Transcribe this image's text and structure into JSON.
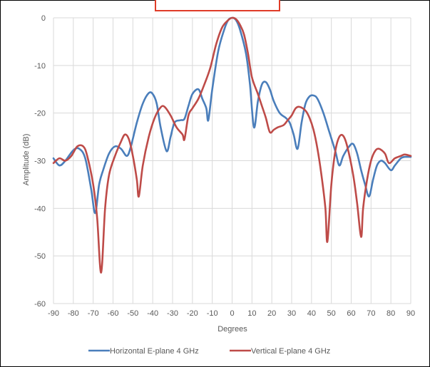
{
  "chart_data": {
    "type": "line",
    "title": "",
    "xlabel": "Degrees",
    "ylabel": "Amplitude (dB)",
    "xlim": [
      -90,
      90
    ],
    "ylim": [
      -60,
      0
    ],
    "x_ticks": [
      "-90",
      "-80",
      "-70",
      "-60",
      "-50",
      "-40",
      "-30",
      "-20",
      "-10",
      "0",
      "10",
      "20",
      "30",
      "40",
      "50",
      "60",
      "70",
      "80",
      "90"
    ],
    "y_ticks": [
      "0",
      "-10",
      "-20",
      "-30",
      "-40",
      "-50",
      "-60"
    ],
    "grid": true,
    "legend_position": "bottom",
    "series": [
      {
        "name": "Horizontal E-plane 4 GHz",
        "color": "#4a7ebb",
        "points": [
          [
            -90,
            -29.5
          ],
          [
            -87,
            -31
          ],
          [
            -84,
            -30
          ],
          [
            -80,
            -27.8
          ],
          [
            -77,
            -27.5
          ],
          [
            -74,
            -29.5
          ],
          [
            -71,
            -36
          ],
          [
            -69,
            -41
          ],
          [
            -67,
            -35
          ],
          [
            -65,
            -32
          ],
          [
            -62,
            -28.5
          ],
          [
            -59,
            -27
          ],
          [
            -56,
            -27.5
          ],
          [
            -53,
            -29
          ],
          [
            -51,
            -27
          ],
          [
            -48,
            -22
          ],
          [
            -45,
            -18
          ],
          [
            -42,
            -15.8
          ],
          [
            -40,
            -16
          ],
          [
            -38,
            -18
          ],
          [
            -36,
            -23
          ],
          [
            -33,
            -28
          ],
          [
            -31,
            -25
          ],
          [
            -29,
            -22
          ],
          [
            -26,
            -21.5
          ],
          [
            -24,
            -21.2
          ],
          [
            -22,
            -18.5
          ],
          [
            -20,
            -16
          ],
          [
            -17,
            -15
          ],
          [
            -15,
            -17
          ],
          [
            -13,
            -19
          ],
          [
            -12,
            -21.5
          ],
          [
            -10,
            -15
          ],
          [
            -7,
            -7
          ],
          [
            -4,
            -2.5
          ],
          [
            -2,
            -0.5
          ],
          [
            0,
            0
          ],
          [
            2,
            -0.5
          ],
          [
            4,
            -2.5
          ],
          [
            7,
            -7.5
          ],
          [
            9,
            -14
          ],
          [
            11,
            -23
          ],
          [
            13,
            -17.5
          ],
          [
            15,
            -14
          ],
          [
            17,
            -13.5
          ],
          [
            19,
            -15
          ],
          [
            21,
            -17.5
          ],
          [
            24,
            -20
          ],
          [
            27,
            -21
          ],
          [
            29,
            -22
          ],
          [
            31,
            -24.5
          ],
          [
            33,
            -27.5
          ],
          [
            35,
            -22
          ],
          [
            37,
            -18
          ],
          [
            39,
            -16.5
          ],
          [
            41,
            -16.3
          ],
          [
            43,
            -17
          ],
          [
            46,
            -20
          ],
          [
            49,
            -24
          ],
          [
            52,
            -28
          ],
          [
            54,
            -31
          ],
          [
            56,
            -29
          ],
          [
            59,
            -27
          ],
          [
            61,
            -26.5
          ],
          [
            63,
            -28.5
          ],
          [
            65,
            -32
          ],
          [
            67,
            -35
          ],
          [
            69,
            -37.5
          ],
          [
            71,
            -34
          ],
          [
            73,
            -31
          ],
          [
            75,
            -30
          ],
          [
            77,
            -30.5
          ],
          [
            80,
            -32
          ],
          [
            82,
            -31
          ],
          [
            85,
            -29.5
          ],
          [
            87,
            -29.2
          ],
          [
            90,
            -29.2
          ]
        ]
      },
      {
        "name": "Vertical E-plane 4 GHz",
        "color": "#be4b48",
        "points": [
          [
            -90,
            -30.5
          ],
          [
            -87,
            -29.5
          ],
          [
            -84,
            -30
          ],
          [
            -81,
            -29
          ],
          [
            -78,
            -27
          ],
          [
            -75,
            -27
          ],
          [
            -73,
            -29
          ],
          [
            -70,
            -35
          ],
          [
            -68,
            -42
          ],
          [
            -66,
            -53.5
          ],
          [
            -64,
            -40
          ],
          [
            -62,
            -33
          ],
          [
            -59,
            -29
          ],
          [
            -56,
            -26
          ],
          [
            -54,
            -24.5
          ],
          [
            -52,
            -25.5
          ],
          [
            -50,
            -29
          ],
          [
            -48,
            -34
          ],
          [
            -47,
            -37.5
          ],
          [
            -45,
            -31
          ],
          [
            -42,
            -25
          ],
          [
            -39,
            -21
          ],
          [
            -36,
            -18.8
          ],
          [
            -34,
            -18.7
          ],
          [
            -31,
            -20.5
          ],
          [
            -28,
            -23
          ],
          [
            -25,
            -24.5
          ],
          [
            -24,
            -25.5
          ],
          [
            -22,
            -20.5
          ],
          [
            -20,
            -19
          ],
          [
            -17,
            -17
          ],
          [
            -14,
            -14
          ],
          [
            -11,
            -10.5
          ],
          [
            -8,
            -5.5
          ],
          [
            -5,
            -2
          ],
          [
            -2,
            -0.5
          ],
          [
            0,
            0
          ],
          [
            2,
            -0.3
          ],
          [
            4,
            -1.5
          ],
          [
            6,
            -3.5
          ],
          [
            8,
            -7.5
          ],
          [
            10,
            -12.5
          ],
          [
            13,
            -16
          ],
          [
            15,
            -18.5
          ],
          [
            17,
            -21
          ],
          [
            19,
            -24
          ],
          [
            21,
            -23.5
          ],
          [
            23,
            -23
          ],
          [
            26,
            -22.5
          ],
          [
            28,
            -21.5
          ],
          [
            30,
            -20.5
          ],
          [
            32,
            -19
          ],
          [
            34,
            -18.7
          ],
          [
            37,
            -19.5
          ],
          [
            39,
            -21
          ],
          [
            41,
            -23.5
          ],
          [
            43,
            -27.5
          ],
          [
            45,
            -33
          ],
          [
            47,
            -40
          ],
          [
            48,
            -47
          ],
          [
            50,
            -35
          ],
          [
            52,
            -28
          ],
          [
            54,
            -25
          ],
          [
            56,
            -24.8
          ],
          [
            58,
            -27
          ],
          [
            61,
            -33
          ],
          [
            63,
            -39
          ],
          [
            65,
            -46
          ],
          [
            66,
            -40
          ],
          [
            68,
            -34
          ],
          [
            70,
            -30
          ],
          [
            72,
            -28
          ],
          [
            74,
            -27.5
          ],
          [
            77,
            -28.5
          ],
          [
            79,
            -30.5
          ],
          [
            82,
            -29.5
          ],
          [
            85,
            -29
          ],
          [
            87,
            -28.7
          ],
          [
            90,
            -29
          ]
        ]
      }
    ]
  }
}
